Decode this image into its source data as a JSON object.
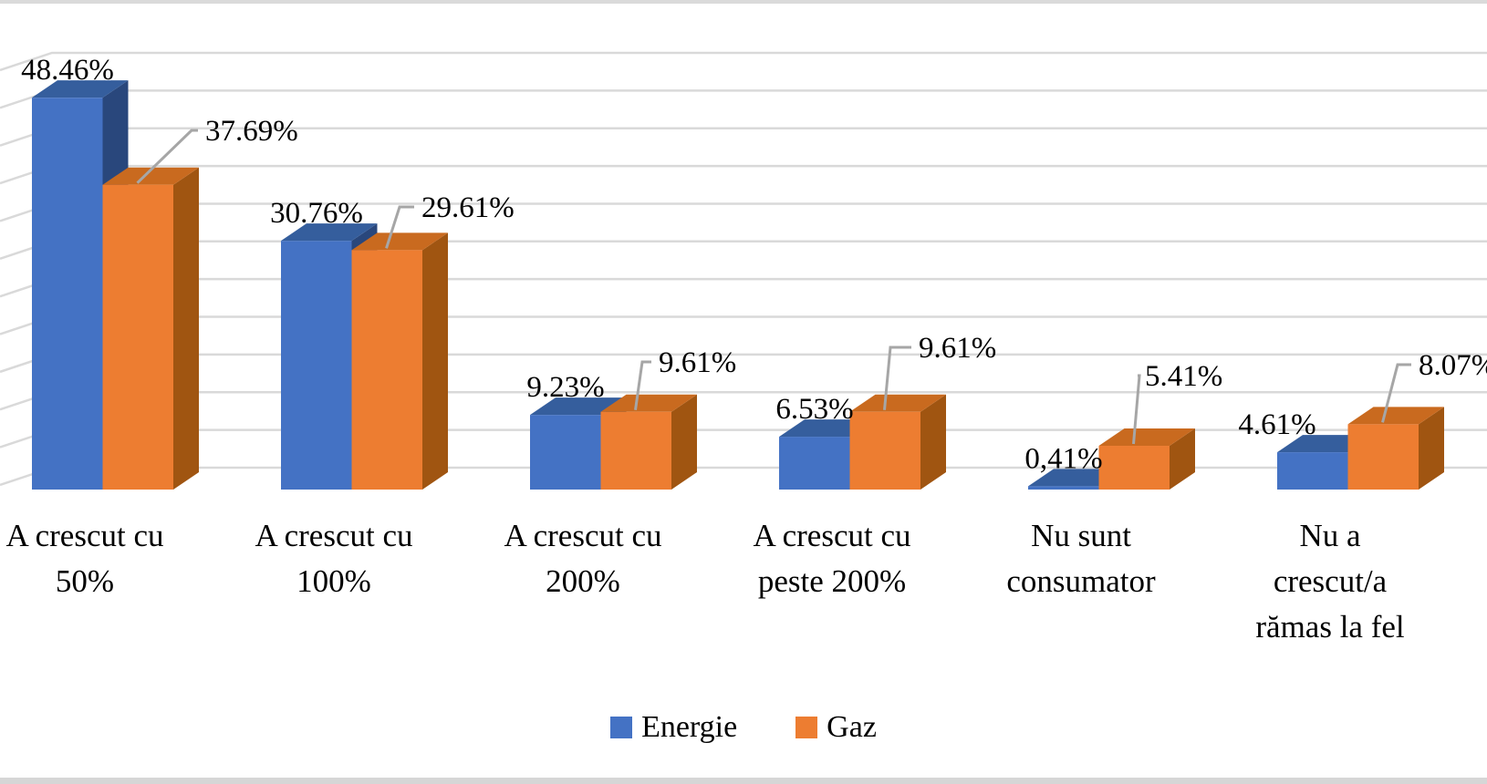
{
  "chart_data": {
    "type": "bar",
    "style": "3d-clustered-column",
    "title": "",
    "xlabel": "",
    "ylabel": "",
    "value_axis_labels_visible": false,
    "gridlines": true,
    "implied_gridline_step_pct": 5,
    "categories": [
      {
        "label": "A crescut cu 50%",
        "lines": [
          "A crescut cu",
          "50%"
        ]
      },
      {
        "label": "A crescut cu 100%",
        "lines": [
          "A crescut cu",
          "100%"
        ]
      },
      {
        "label": "A crescut cu 200%",
        "lines": [
          "A crescut cu",
          "200%"
        ]
      },
      {
        "label": "A crescut cu peste 200%",
        "lines": [
          "A crescut cu",
          "peste 200%"
        ]
      },
      {
        "label": "Nu sunt consumator",
        "lines": [
          "Nu sunt",
          "consumator"
        ]
      },
      {
        "label": "Nu a crescut/a rămas la fel",
        "lines": [
          "Nu a",
          "crescut/a",
          "rămas la fel"
        ]
      }
    ],
    "series": [
      {
        "name": "Energie",
        "values": [
          48.46,
          30.76,
          9.23,
          6.53,
          0.41,
          4.61
        ],
        "data_labels": [
          "48.46%",
          "30.76%",
          "9.23%",
          "6.53%",
          "0,41%",
          "4.61%"
        ],
        "colors": {
          "front": "#4472C4",
          "top": "#355E9D",
          "side": "#29477C"
        }
      },
      {
        "name": "Gaz",
        "values": [
          37.69,
          29.61,
          9.61,
          9.61,
          5.41,
          8.07
        ],
        "data_labels": [
          "37.69%",
          "29.61%",
          "9.61%",
          "9.61%",
          "5.41%",
          "8.07%"
        ],
        "colors": {
          "front": "#ED7D31",
          "top": "#C96A1F",
          "side": "#A05511"
        }
      }
    ],
    "legend": {
      "position": "bottom",
      "entries": [
        "Energie",
        "Gaz"
      ]
    },
    "leader_line_color": "#A6A6A6",
    "gridline_color": "#D9D9D9"
  }
}
